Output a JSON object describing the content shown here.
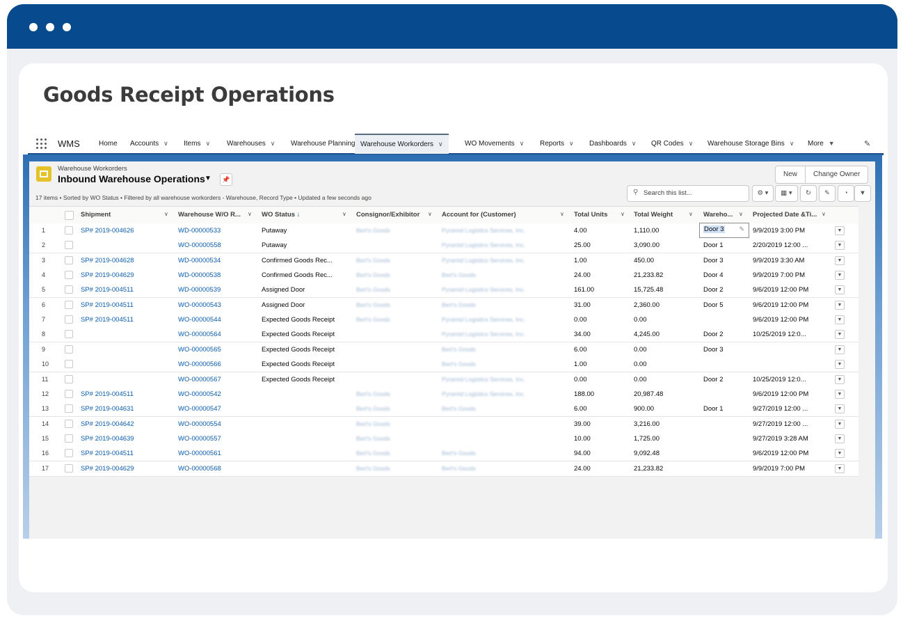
{
  "page_title": "Goods Receipt Operations",
  "nav": {
    "app_name": "WMS",
    "items": [
      {
        "label": "Home",
        "chevron": false
      },
      {
        "label": "Accounts",
        "chevron": true
      },
      {
        "label": "Items",
        "chevron": true
      },
      {
        "label": "Warehouses",
        "chevron": true
      },
      {
        "label": "Warehouse Planning",
        "chevron": false
      },
      {
        "label": "Warehouse Workorders",
        "chevron": true,
        "active": true
      },
      {
        "label": "WO Movements",
        "chevron": true
      },
      {
        "label": "Reports",
        "chevron": true
      },
      {
        "label": "Dashboards",
        "chevron": true
      },
      {
        "label": "QR Codes",
        "chevron": true
      },
      {
        "label": "Warehouse Storage Bins",
        "chevron": true
      },
      {
        "label": "More",
        "chevron": true
      }
    ]
  },
  "list_view": {
    "object_label": "Warehouse Workorders",
    "title": "Inbound Warehouse Operations",
    "meta": "17 items • Sorted by WO Status • Filtered by all warehouse workorders - Warehouse, Record Type • Updated a few seconds ago",
    "buttons": {
      "new": "New",
      "change_owner": "Change Owner"
    },
    "search_placeholder": "Search this list..."
  },
  "columns": [
    "Shipment",
    "Warehouse W/O R...",
    "WO Status",
    "Consignor/Exhibitor",
    "Account for (Customer)",
    "Total Units",
    "Total Weight",
    "Wareho...",
    "Projected Date &Ti..."
  ],
  "sort_indicator": "↓",
  "rows": [
    {
      "n": "1",
      "shipment": "SP# 2019-004626",
      "wo": "WD-00000533",
      "status": "Putaway",
      "consignor": "Bert's Goods",
      "account": "Pyramid Logistics Services, Inc.",
      "units": "4.00",
      "weight": "1,110.00",
      "door": "Door 3",
      "date": "9/9/2019 3:00 PM"
    },
    {
      "n": "2",
      "shipment": "",
      "wo": "WO-00000558",
      "status": "Putaway",
      "consignor": "",
      "account": "Pyramid Logistics Services, Inc.",
      "units": "25.00",
      "weight": "3,090.00",
      "door": "Door 1",
      "date": "2/20/2019 12:00 ..."
    },
    {
      "n": "3",
      "shipment": "SP# 2019-004628",
      "wo": "WD-00000534",
      "status": "Confirmed Goods Rec...",
      "consignor": "Bert's Goods",
      "account": "Pyramid Logistics Services, Inc.",
      "units": "1.00",
      "weight": "450.00",
      "door": "Door 3",
      "date": "9/9/2019 3:30 AM"
    },
    {
      "n": "4",
      "shipment": "SP# 2019-004629",
      "wo": "WD-00000538",
      "status": "Confirmed Goods Rec...",
      "consignor": "Bert's Goods",
      "account": "Bert's Goods",
      "units": "24.00",
      "weight": "21,233.82",
      "door": "Door 4",
      "date": "9/9/2019 7:00 PM"
    },
    {
      "n": "5",
      "shipment": "SP# 2019-004511",
      "wo": "WD-00000539",
      "status": "Assigned Door",
      "consignor": "Bert's Goods",
      "account": "Pyramid Logistics Services, Inc.",
      "units": "161.00",
      "weight": "15,725.48",
      "door": "Door 2",
      "date": "9/6/2019 12:00 PM"
    },
    {
      "n": "6",
      "shipment": "SP# 2019-004511",
      "wo": "WO-00000543",
      "status": "Assigned Door",
      "consignor": "Bert's Goods",
      "account": "Bert's Goods",
      "units": "31.00",
      "weight": "2,360.00",
      "door": "Door 5",
      "date": "9/6/2019 12:00 PM"
    },
    {
      "n": "7",
      "shipment": "SP# 2019-004511",
      "wo": "WO-00000544",
      "status": "Expected Goods Receipt",
      "consignor": "Bert's Goods",
      "account": "Pyramid Logistics Services, Inc.",
      "units": "0.00",
      "weight": "0.00",
      "door": "",
      "date": "9/6/2019 12:00 PM"
    },
    {
      "n": "8",
      "shipment": "",
      "wo": "WO-00000564",
      "status": "Expected Goods Receipt",
      "consignor": "",
      "account": "Pyramid Logistics Services, Inc.",
      "units": "34.00",
      "weight": "4,245.00",
      "door": "Door 2",
      "date": "10/25/2019 12:0..."
    },
    {
      "n": "9",
      "shipment": "",
      "wo": "WO-00000565",
      "status": "Expected Goods Receipt",
      "consignor": "",
      "account": "Bert's Goods",
      "units": "6.00",
      "weight": "0.00",
      "door": "Door 3",
      "date": ""
    },
    {
      "n": "10",
      "shipment": "",
      "wo": "WO-00000566",
      "status": "Expected Goods Receipt",
      "consignor": "",
      "account": "Bert's Goods",
      "units": "1.00",
      "weight": "0.00",
      "door": "",
      "date": ""
    },
    {
      "n": "11",
      "shipment": "",
      "wo": "WO-00000567",
      "status": "Expected Goods Receipt",
      "consignor": "",
      "account": "Pyramid Logistics Services, Inc.",
      "units": "0.00",
      "weight": "0.00",
      "door": "Door 2",
      "date": "10/25/2019 12:0..."
    },
    {
      "n": "12",
      "shipment": "SP# 2019-004511",
      "wo": "WO-00000542",
      "status": "",
      "consignor": "Bert's Goods",
      "account": "Pyramid Logistics Services, Inc.",
      "units": "188.00",
      "weight": "20,987.48",
      "door": "",
      "date": "9/6/2019 12:00 PM"
    },
    {
      "n": "13",
      "shipment": "SP# 2019-004631",
      "wo": "WO-00000547",
      "status": "",
      "consignor": "Bert's Goods",
      "account": "Bert's Goods",
      "units": "6.00",
      "weight": "900.00",
      "door": "Door 1",
      "date": "9/27/2019 12:00 ..."
    },
    {
      "n": "14",
      "shipment": "SP# 2019-004642",
      "wo": "WO-00000554",
      "status": "",
      "consignor": "Bert's Goods",
      "account": "",
      "units": "39.00",
      "weight": "3,216.00",
      "door": "",
      "date": "9/27/2019 12:00 ..."
    },
    {
      "n": "15",
      "shipment": "SP# 2019-004639",
      "wo": "WO-00000557",
      "status": "",
      "consignor": "Bert's Goods",
      "account": "",
      "units": "10.00",
      "weight": "1,725.00",
      "door": "",
      "date": "9/27/2019 3:28 AM"
    },
    {
      "n": "16",
      "shipment": "SP# 2019-004511",
      "wo": "WO-00000561",
      "status": "",
      "consignor": "Bert's Goods",
      "account": "Bert's Goods",
      "units": "94.00",
      "weight": "9,092.48",
      "door": "",
      "date": "9/6/2019 12:00 PM"
    },
    {
      "n": "17",
      "shipment": "SP# 2019-004629",
      "wo": "WO-00000568",
      "status": "",
      "consignor": "Bert's Goods",
      "account": "Bert's Goods",
      "units": "24.00",
      "weight": "21,233.82",
      "door": "",
      "date": "9/9/2019 7:00 PM"
    }
  ],
  "colors": {
    "header_bar": "#074a8d",
    "link": "#0b5cab",
    "nav_accent": "#1d4f8b"
  }
}
